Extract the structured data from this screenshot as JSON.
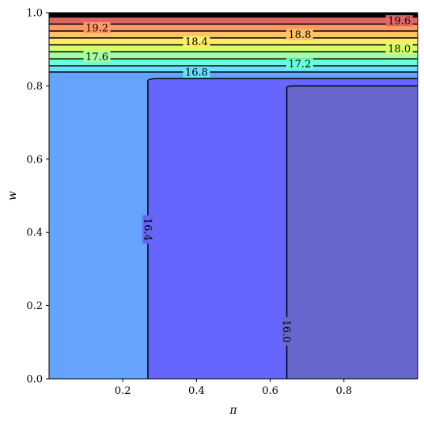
{
  "chart_data": {
    "type": "contour",
    "title": "",
    "xlabel": "π",
    "ylabel": "w",
    "xlim": [
      0.0,
      1.0
    ],
    "ylim": [
      0.0,
      1.0
    ],
    "x_ticks": [
      0.2,
      0.4,
      0.6,
      0.8
    ],
    "y_ticks": [
      0.0,
      0.2,
      0.4,
      0.6,
      0.8,
      1.0
    ],
    "x_tick_labels": [
      "0.2",
      "0.4",
      "0.6",
      "0.8"
    ],
    "y_tick_labels": [
      "0.0",
      "0.2",
      "0.4",
      "0.6",
      "0.8",
      "1.0"
    ],
    "grid": false,
    "colormap": "jet",
    "contour_levels": [
      16.0,
      16.4,
      16.8,
      17.2,
      17.6,
      18.0,
      18.4,
      18.8,
      19.2,
      19.6
    ],
    "vertical_contours": [
      {
        "level": 16.4,
        "x": 0.268,
        "label": "16.4",
        "label_y": 0.408
      },
      {
        "level": 16.0,
        "x": 0.645,
        "label": "16.0",
        "label_y": 0.13
      }
    ],
    "band_boundaries_w": [
      0.838,
      0.855,
      0.874,
      0.893,
      0.912,
      0.931,
      0.95,
      0.969,
      0.988
    ],
    "band_labels": [
      {
        "label": "16.8",
        "x": 0.4,
        "w": 0.838
      },
      {
        "label": "17.2",
        "x": 0.68,
        "w": 0.86
      },
      {
        "label": "17.6",
        "x": 0.13,
        "w": 0.88
      },
      {
        "label": "18.0",
        "x": 0.95,
        "w": 0.902
      },
      {
        "label": "18.4",
        "x": 0.4,
        "w": 0.921
      },
      {
        "label": "18.8",
        "x": 0.68,
        "w": 0.94
      },
      {
        "label": "19.2",
        "x": 0.13,
        "w": 0.959
      },
      {
        "label": "19.6",
        "x": 0.95,
        "w": 0.978
      }
    ],
    "colors": {
      "region_below_16_0": "#6666cc",
      "region_16_0_to_16_4": "#6666ff",
      "region_16_4_to_16_8": "#66a3ff",
      "bands": [
        "#66e0ff",
        "#66ffd6",
        "#a3ffa3",
        "#d6ff66",
        "#ffeb66",
        "#ffc266",
        "#ff9966",
        "#e06666"
      ]
    }
  }
}
